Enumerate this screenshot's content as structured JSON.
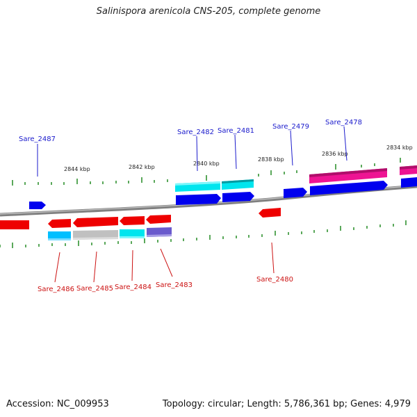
{
  "title": "Salinispora arenicola CNS-205, complete genome",
  "footer": {
    "accession": "Accession: NC_009953",
    "summary": "Topology: circular; Length: 5,786,361 bp; Genes: 4,979"
  },
  "ticks": [
    "2844 kbp",
    "2842 kbp",
    "2840 kbp",
    "2838 kbp",
    "2836 kbp",
    "2834 kbp"
  ],
  "genes": {
    "sare_2487": "Sare_2487",
    "sare_2482": "Sare_2482",
    "sare_2481": "Sare_2481",
    "sare_2479": "Sare_2479",
    "sare_2478": "Sare_2478",
    "sare_2486": "Sare_2486",
    "sare_2485": "Sare_2485",
    "sare_2484": "Sare_2484",
    "sare_2483": "Sare_2483",
    "sare_2480": "Sare_2480"
  },
  "colors": {
    "forward_gene": "#0000ee",
    "reverse_gene": "#ee0000",
    "backbone": "#808080",
    "tick": "#228b22",
    "cyan_feature": "#00e5ee",
    "magenta_feature": "#ee1493",
    "gray_feature": "#c0c0c0",
    "purple_feature": "#6a5acd"
  }
}
